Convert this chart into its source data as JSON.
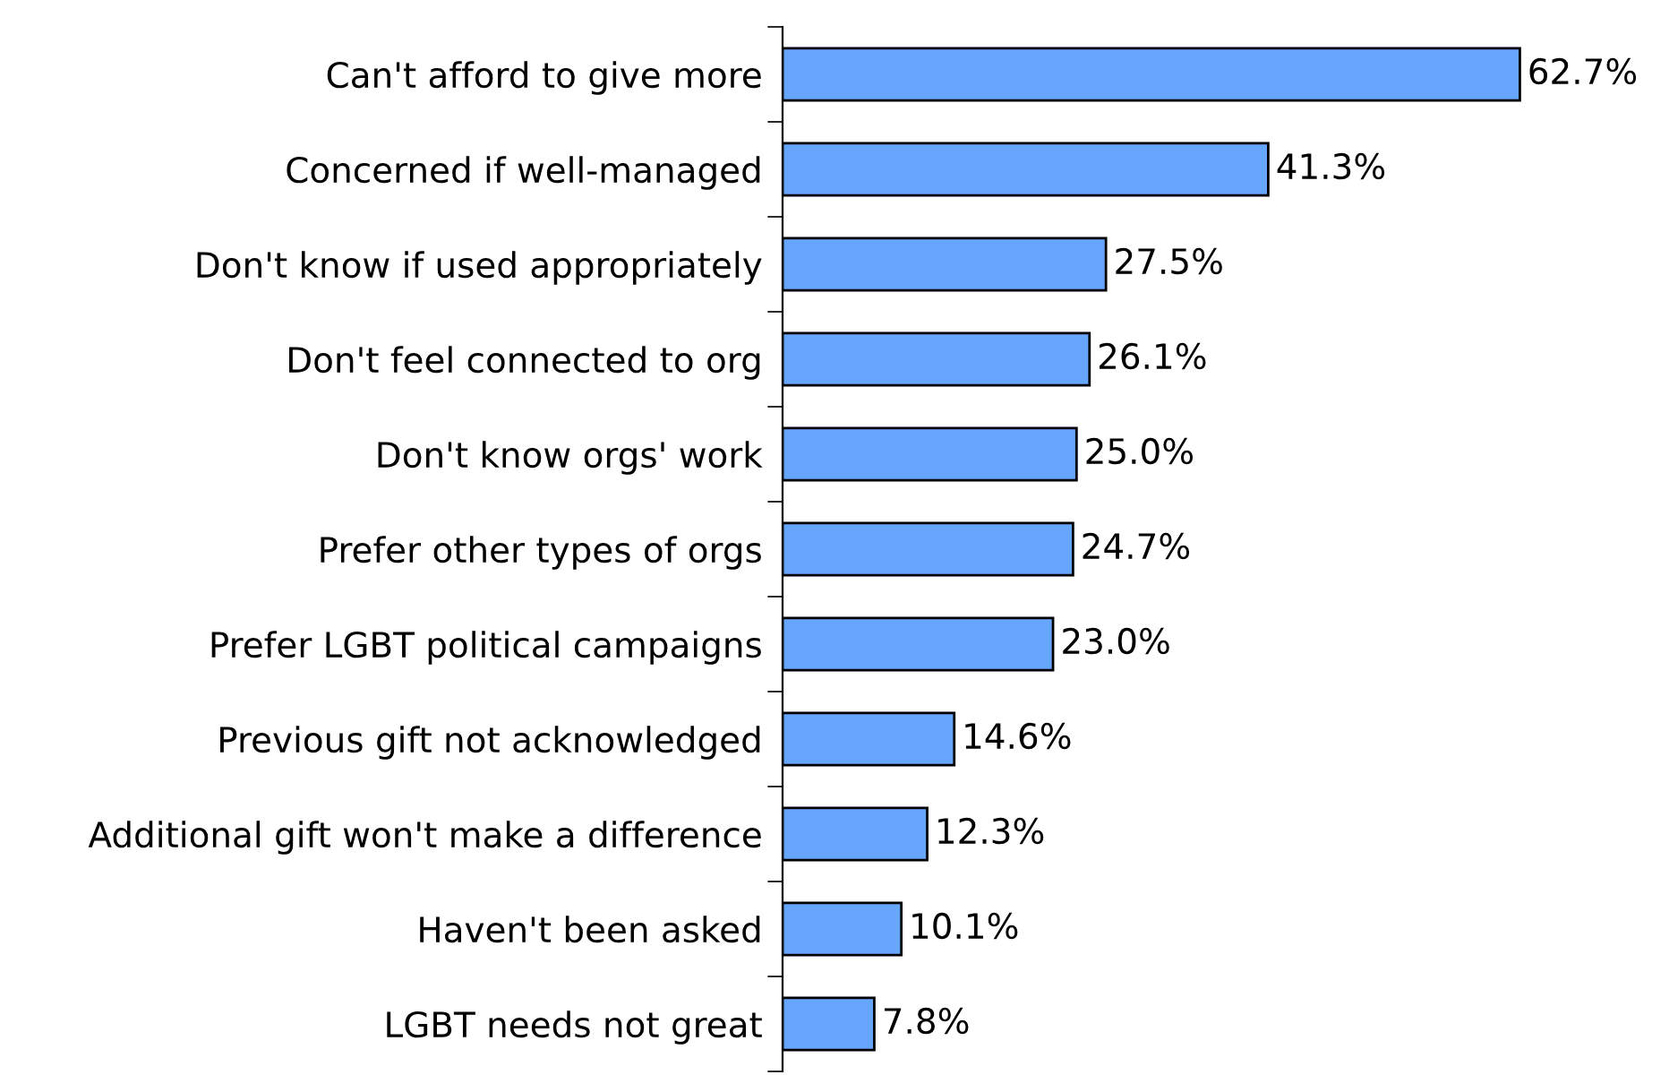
{
  "chart_data": {
    "type": "bar",
    "orientation": "horizontal",
    "categories": [
      "Can't afford to give more",
      "Concerned if well-managed",
      "Don't know if used appropriately",
      "Don't feel connected to org",
      "Don't know orgs' work",
      "Prefer other types of orgs",
      "Prefer LGBT political campaigns",
      "Previous gift not acknowledged",
      "Additional gift won't make a difference",
      "Haven't been asked",
      "LGBT needs not great"
    ],
    "values": [
      62.7,
      41.3,
      27.5,
      26.1,
      25.0,
      24.7,
      23.0,
      14.6,
      12.3,
      10.1,
      7.8
    ],
    "value_labels": [
      "62.7%",
      "41.3%",
      "27.5%",
      "26.1%",
      "25.0%",
      "24.7%",
      "23.0%",
      "14.6%",
      "12.3%",
      "10.1%",
      "7.8%"
    ],
    "color": "#66a6ff",
    "grid": false,
    "legend": false,
    "tick_labels": "y"
  }
}
